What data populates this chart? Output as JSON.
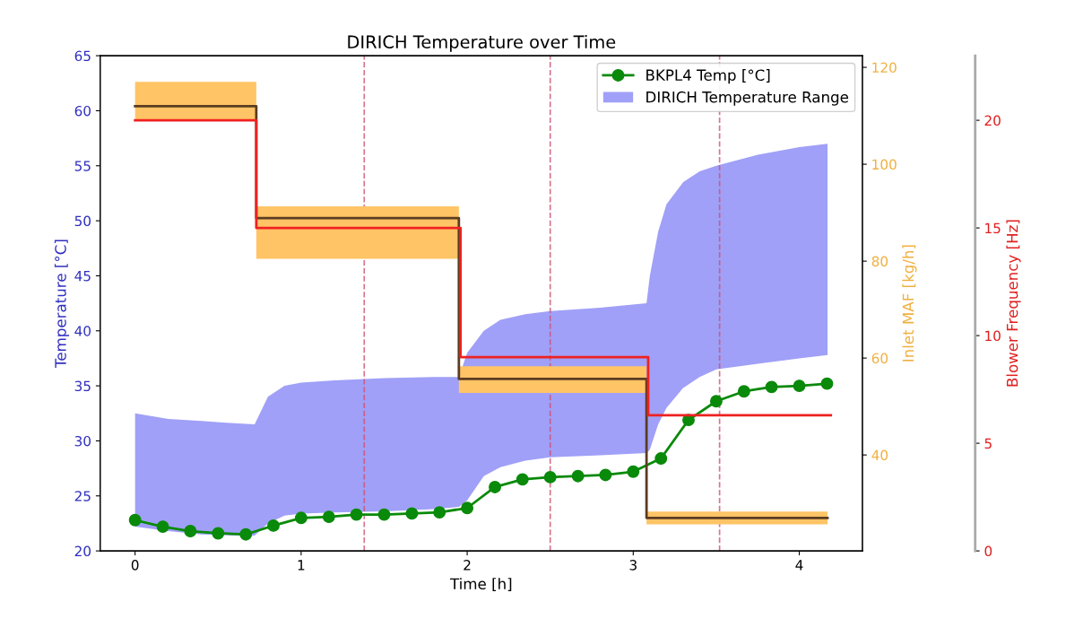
{
  "chart_data": {
    "type": "line",
    "title": "DIRICH Temperature over Time",
    "xlabel": "Time [h]",
    "ylabel": "Temperature [°C]",
    "y2label": "Inlet MAF [kg/h]",
    "y3label": "Blower Frequency [Hz]",
    "xlim": [
      -0.21,
      4.38
    ],
    "xticks": [
      0,
      1,
      2,
      3,
      4
    ],
    "ylim": [
      20,
      65
    ],
    "yticks": [
      20,
      25,
      30,
      35,
      40,
      45,
      50,
      55,
      60,
      65
    ],
    "y2lim": [
      20.2,
      122.4
    ],
    "y2ticks": [
      40,
      60,
      80,
      100,
      120
    ],
    "y3lim": [
      0,
      23
    ],
    "y3ticks": [
      0,
      5,
      10,
      15,
      20
    ],
    "grid": false,
    "legend": "top right",
    "ref_lines": [
      {
        "axis": "x",
        "value": 1.38,
        "color": "#d05070",
        "line_style": "dashed"
      },
      {
        "axis": "x",
        "value": 2.5,
        "color": "#d05070",
        "line_style": "dashed"
      },
      {
        "axis": "x",
        "value": 3.52,
        "color": "#d05070",
        "line_style": "dashed"
      }
    ],
    "series": [
      {
        "name": "BKPL4 Temp [°C]",
        "color": "#0a8a0a",
        "marker": "circle",
        "x": [
          0,
          0.167,
          0.333,
          0.5,
          0.667,
          0.833,
          1.0,
          1.167,
          1.333,
          1.5,
          1.667,
          1.833,
          2.0,
          2.167,
          2.333,
          2.5,
          2.667,
          2.833,
          3.0,
          3.167,
          3.333,
          3.5,
          3.667,
          3.833,
          4.0,
          4.167
        ],
        "values": [
          22.8,
          22.2,
          21.8,
          21.6,
          21.5,
          22.3,
          23.0,
          23.1,
          23.3,
          23.3,
          23.4,
          23.5,
          23.9,
          25.8,
          26.5,
          26.7,
          26.8,
          26.9,
          27.2,
          28.4,
          31.9,
          33.6,
          34.5,
          34.9,
          35.0,
          35.2
        ]
      },
      {
        "name": "DIRICH Temperature Range",
        "type": "area",
        "color": "#a0a0f8",
        "x": [
          0,
          0.2,
          0.4,
          0.6,
          0.72,
          0.8,
          0.9,
          1.0,
          1.2,
          1.5,
          1.8,
          1.95,
          2.0,
          2.1,
          2.2,
          2.35,
          2.5,
          2.8,
          3.08,
          3.1,
          3.15,
          3.2,
          3.3,
          3.4,
          3.5,
          3.75,
          4.0,
          4.17
        ],
        "lower": [
          22.2,
          21.8,
          21.5,
          21.4,
          21.4,
          22.5,
          23.2,
          23.4,
          23.5,
          23.6,
          23.8,
          24.0,
          24.6,
          26.8,
          27.6,
          28.2,
          28.5,
          28.7,
          28.9,
          29.2,
          31.5,
          33.0,
          34.8,
          35.8,
          36.5,
          37.0,
          37.5,
          37.8
        ],
        "upper": [
          32.5,
          32.0,
          31.8,
          31.6,
          31.5,
          34.0,
          35.0,
          35.3,
          35.5,
          35.7,
          35.8,
          35.8,
          38.0,
          40.0,
          41.0,
          41.5,
          41.8,
          42.1,
          42.5,
          45.0,
          49.0,
          51.5,
          53.5,
          54.5,
          55.0,
          56.0,
          56.7,
          57.0
        ],
        "values": [
          null,
          null,
          null,
          null,
          null,
          null,
          null,
          null,
          null,
          null,
          null,
          null,
          null,
          null,
          null,
          null,
          null,
          null,
          null,
          null,
          null,
          null,
          null,
          null,
          null,
          null,
          null,
          null
        ]
      },
      {
        "type": "area",
        "axis": "y2",
        "color": "#ffc466",
        "x": [
          0,
          0.73,
          0.73,
          1.95,
          1.95,
          3.08,
          3.08,
          4.17
        ],
        "lower": [
          109,
          109,
          80.5,
          80.5,
          52.8,
          52.8,
          25.7,
          25.7
        ],
        "upper": [
          117,
          117,
          91.3,
          91.3,
          58.3,
          58.3,
          28.3,
          28.3
        ],
        "values": [
          null,
          null,
          null,
          null,
          null,
          null,
          null,
          null
        ]
      },
      {
        "type": "step",
        "axis": "y2",
        "color": "#5a3c22",
        "x": [
          0,
          0.73,
          1.95,
          3.08,
          4.17
        ],
        "values": [
          112,
          88.9,
          55.7,
          27,
          27
        ]
      },
      {
        "type": "step",
        "axis": "y3",
        "color": "#ee2222",
        "x": [
          0,
          0.73,
          1.96,
          3.09,
          4.19
        ],
        "values": [
          20,
          15,
          9,
          6.3,
          6.3
        ]
      }
    ]
  }
}
